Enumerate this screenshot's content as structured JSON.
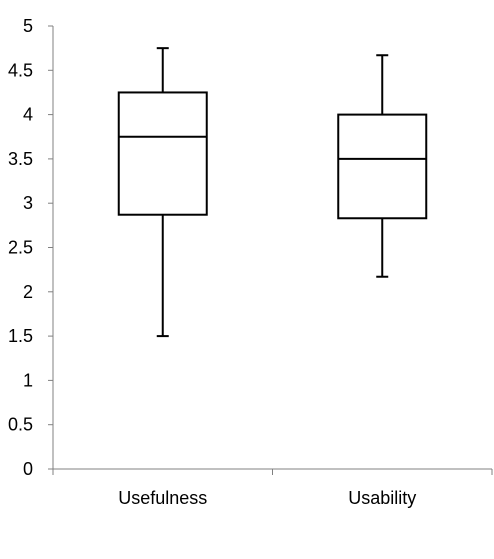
{
  "chart_data": {
    "type": "boxplot",
    "title": "",
    "xlabel": "",
    "ylabel": "",
    "ylim": [
      0,
      5
    ],
    "yticks": [
      "0",
      "0.5",
      "1",
      "1.5",
      "2",
      "2.5",
      "3",
      "3.5",
      "4",
      "4.5",
      "5"
    ],
    "grid": false,
    "categories": [
      "Usefulness",
      "Usability"
    ],
    "boxes": [
      {
        "category": "Usefulness",
        "min": 1.5,
        "q1": 2.87,
        "median": 3.75,
        "q3": 4.25,
        "max": 4.75
      },
      {
        "category": "Usability",
        "min": 2.17,
        "q1": 2.83,
        "median": 3.5,
        "q3": 4.0,
        "max": 4.67
      }
    ],
    "colors": {
      "line": "#000000",
      "fill": "#ffffff",
      "axis": "#808080"
    }
  }
}
